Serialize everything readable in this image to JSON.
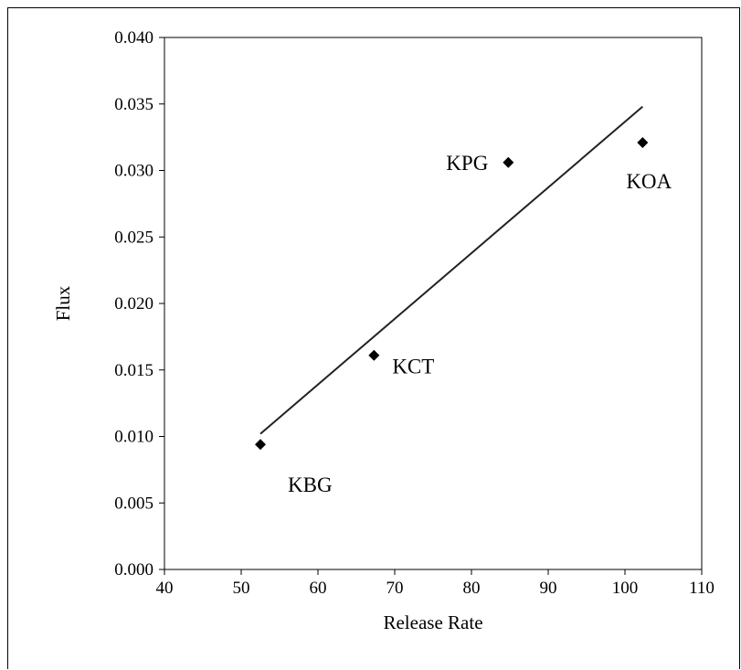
{
  "chart_data": {
    "type": "scatter",
    "title": "",
    "xlabel": "Release Rate",
    "ylabel": "Flux",
    "xlim": [
      40,
      110
    ],
    "ylim": [
      0.0,
      0.04
    ],
    "xticks": [
      "40",
      "50",
      "60",
      "70",
      "80",
      "90",
      "100",
      "110"
    ],
    "yticks": [
      "0.000",
      "0.005",
      "0.010",
      "0.015",
      "0.020",
      "0.025",
      "0.030",
      "0.035",
      "0.040"
    ],
    "grid": false,
    "legend": "none",
    "series": [
      {
        "points": [
          {
            "label": "KBG",
            "x": 52.5,
            "y": 0.0094
          },
          {
            "label": "KCT",
            "x": 67.3,
            "y": 0.0161
          },
          {
            "label": "KPG",
            "x": 84.8,
            "y": 0.0306
          },
          {
            "label": "KOA",
            "x": 102.3,
            "y": 0.0321
          }
        ],
        "marker": "diamond",
        "color": "#000000"
      }
    ],
    "trendline": {
      "type": "linear",
      "x": [
        52.5,
        102.3
      ],
      "y": [
        0.0102,
        0.0348
      ]
    }
  }
}
